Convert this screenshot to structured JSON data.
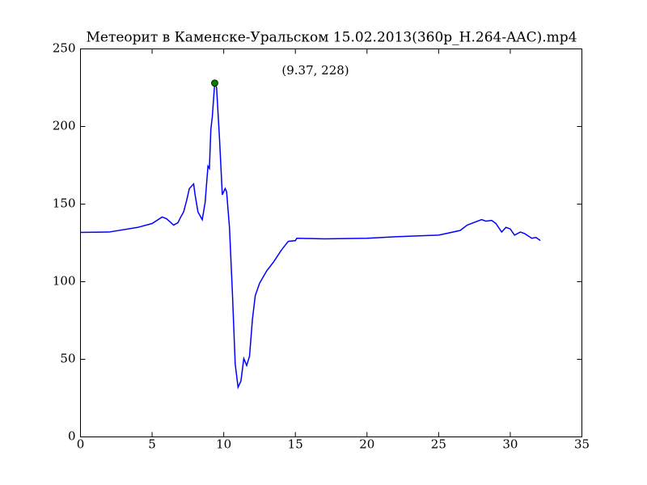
{
  "chart_data": {
    "type": "line",
    "title": "Метеорит в Каменске-Уральском 15.02.2013(360p_H.264-AAC).mp4",
    "x": [
      0,
      2,
      4,
      5,
      5.7,
      6,
      6.2,
      6.5,
      6.8,
      7.0,
      7.2,
      7.4,
      7.6,
      7.9,
      8.0,
      8.2,
      8.5,
      8.7,
      8.9,
      9.0,
      9.1,
      9.2,
      9.37,
      9.5,
      9.7,
      9.9,
      10.1,
      10.2,
      10.4,
      10.6,
      10.8,
      11.0,
      11.2,
      11.4,
      11.6,
      11.8,
      12.0,
      12.2,
      12.5,
      13,
      13.5,
      14,
      14.5,
      15,
      15.1,
      17,
      20,
      22,
      25,
      26.5,
      27,
      28,
      28.3,
      28.7,
      29,
      29.4,
      29.7,
      30,
      30.3,
      30.7,
      31,
      31.5,
      31.8,
      32.1
    ],
    "series": [
      {
        "color": "#0000ff",
        "values": [
          131.8,
          132,
          135,
          137.5,
          141.7,
          140.6,
          139,
          136.5,
          138,
          141.7,
          145,
          152,
          160,
          163,
          156,
          145,
          140,
          151,
          174.5,
          173,
          198,
          206,
          228,
          225,
          193,
          156,
          160,
          158,
          135,
          94,
          47,
          32,
          36,
          50.5,
          46,
          52,
          75.5,
          91,
          99,
          107,
          113,
          120,
          126,
          126.5,
          128,
          127.6,
          128,
          129,
          130,
          133,
          136.5,
          140,
          139,
          139.5,
          137.5,
          132,
          135,
          134,
          130,
          132,
          131,
          128,
          128.5,
          126.5
        ]
      }
    ],
    "marker": {
      "x": 9.37,
      "y": 228,
      "color": "#008000"
    },
    "annotation": "(9.37, 228)",
    "xlim": [
      0,
      35
    ],
    "xticks": [
      0,
      5,
      10,
      15,
      20,
      25,
      30,
      35
    ],
    "ylim": [
      0,
      250
    ],
    "yticks": [
      0,
      50,
      100,
      150,
      200,
      250
    ],
    "grid": false
  }
}
